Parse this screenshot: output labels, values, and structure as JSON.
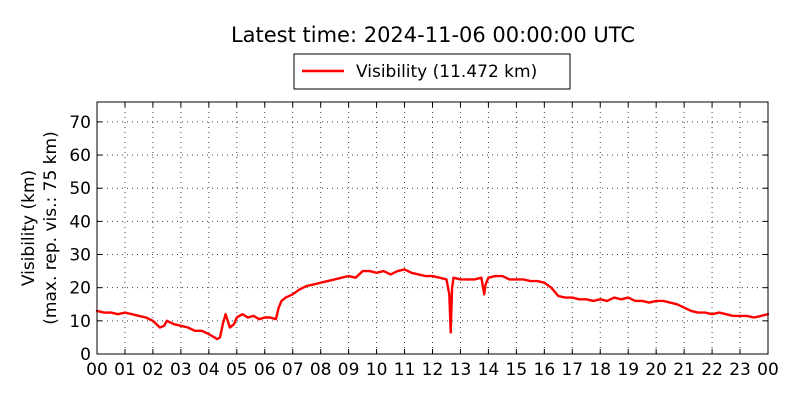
{
  "chart_data": {
    "type": "line",
    "title": "Latest time: 2024-11-06 00:00:00 UTC",
    "ylabel_line1": "Visibility (km)",
    "ylabel_line2": "(max. rep. vis.: 75 km)",
    "xlabel": "",
    "xlim": [
      0,
      24
    ],
    "ylim": [
      0,
      76
    ],
    "grid": true,
    "legend_position": "top-center-outside",
    "x_ticks": [
      "00",
      "01",
      "02",
      "03",
      "04",
      "05",
      "06",
      "07",
      "08",
      "09",
      "10",
      "11",
      "12",
      "13",
      "14",
      "15",
      "16",
      "17",
      "18",
      "19",
      "20",
      "21",
      "22",
      "23",
      "00"
    ],
    "y_ticks": [
      "0",
      "10",
      "20",
      "30",
      "40",
      "50",
      "60",
      "70"
    ],
    "series": [
      {
        "name": "Visibility (11.472 km)",
        "color": "#ff0000",
        "x_hours": [
          0.0,
          0.25,
          0.5,
          0.75,
          1.0,
          1.25,
          1.5,
          1.75,
          2.0,
          2.25,
          2.4,
          2.5,
          2.75,
          3.0,
          3.25,
          3.5,
          3.75,
          4.0,
          4.2,
          4.3,
          4.4,
          4.5,
          4.6,
          4.75,
          4.9,
          5.0,
          5.2,
          5.4,
          5.6,
          5.8,
          6.0,
          6.2,
          6.4,
          6.5,
          6.6,
          6.75,
          7.0,
          7.25,
          7.5,
          7.75,
          8.0,
          8.25,
          8.5,
          8.75,
          9.0,
          9.25,
          9.5,
          9.75,
          10.0,
          10.25,
          10.5,
          10.75,
          11.0,
          11.25,
          11.5,
          11.75,
          12.0,
          12.25,
          12.5,
          12.6,
          12.65,
          12.7,
          12.75,
          13.0,
          13.25,
          13.5,
          13.75,
          13.85,
          13.9,
          14.0,
          14.25,
          14.5,
          14.75,
          15.0,
          15.25,
          15.5,
          15.75,
          16.0,
          16.25,
          16.5,
          16.75,
          17.0,
          17.25,
          17.5,
          17.75,
          18.0,
          18.25,
          18.5,
          18.75,
          19.0,
          19.25,
          19.5,
          19.75,
          20.0,
          20.25,
          20.5,
          20.75,
          21.0,
          21.25,
          21.5,
          21.75,
          22.0,
          22.25,
          22.5,
          22.75,
          23.0,
          23.25,
          23.5,
          23.75,
          24.0
        ],
        "values_km": [
          13,
          12.5,
          12.5,
          12,
          12.5,
          12,
          11.5,
          11,
          10,
          8,
          8.5,
          10,
          9,
          8.5,
          8,
          7,
          7,
          6,
          5,
          4.5,
          5,
          9,
          12,
          8,
          9,
          11,
          12,
          11,
          11.5,
          10.5,
          11,
          11,
          10.5,
          14,
          16,
          17,
          18,
          19.5,
          20.5,
          21,
          21.5,
          22,
          22.5,
          23,
          23.5,
          23,
          25,
          25,
          24.5,
          25,
          24,
          25,
          25.5,
          24.5,
          24,
          23.5,
          23.5,
          23,
          22.5,
          18,
          6.5,
          20,
          23,
          22.5,
          22.5,
          22.5,
          23,
          18,
          21,
          23,
          23.5,
          23.5,
          22.5,
          22.5,
          22.5,
          22,
          22,
          21.5,
          20,
          17.5,
          17,
          17,
          16.5,
          16.5,
          16,
          16.5,
          16,
          17,
          16.5,
          17,
          16,
          16,
          15.5,
          16,
          16,
          15.5,
          15,
          14,
          13,
          12.5,
          12.5,
          12,
          12.5,
          12,
          11.5,
          11.5,
          11.5,
          11,
          11.5,
          12
        ]
      }
    ]
  }
}
